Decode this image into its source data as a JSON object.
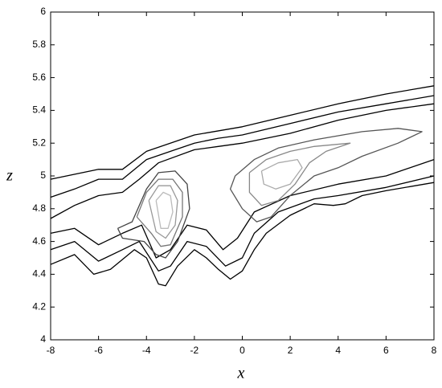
{
  "chart_data": {
    "type": "contour",
    "x_label": "x",
    "y_label": "z",
    "xlim": [
      -8,
      8
    ],
    "ylim": [
      4,
      6
    ],
    "xticks": [
      -8,
      -6,
      -4,
      -2,
      0,
      2,
      4,
      6,
      8
    ],
    "yticks": [
      4,
      4.2,
      4.4,
      4.6,
      4.8,
      5,
      5.2,
      5.4,
      5.6,
      5.8,
      6
    ],
    "lines": [
      {
        "color": "#000000",
        "x": [
          -8,
          -6,
          -5,
          -4,
          -2,
          0,
          2,
          4,
          6,
          8
        ],
        "y": [
          4.98,
          5.04,
          5.04,
          5.15,
          5.25,
          5.3,
          5.37,
          5.44,
          5.5,
          5.55
        ]
      },
      {
        "color": "#000000",
        "x": [
          -8,
          -7,
          -6,
          -5,
          -4,
          -3,
          -2,
          -1,
          0,
          2,
          4,
          6,
          8
        ],
        "y": [
          4.87,
          4.92,
          4.98,
          4.98,
          5.1,
          5.15,
          5.2,
          5.23,
          5.25,
          5.32,
          5.39,
          5.44,
          5.49
        ]
      },
      {
        "color": "#000000",
        "x": [
          -8,
          -7,
          -6,
          -5,
          -4.3,
          -3.5,
          -2,
          -1,
          0,
          2,
          4,
          6,
          8
        ],
        "y": [
          4.74,
          4.82,
          4.88,
          4.9,
          4.98,
          5.08,
          5.16,
          5.18,
          5.2,
          5.26,
          5.34,
          5.4,
          5.44
        ]
      },
      {
        "color": "#000000",
        "x": [
          -8,
          -7,
          -6.2,
          -5.5,
          -4.5,
          -4,
          -3.5,
          -3.2,
          -2.7,
          -2,
          -1.5,
          -1,
          -0.5,
          0,
          0.5,
          1,
          2,
          3,
          3.8,
          4.3,
          5,
          6,
          8
        ],
        "y": [
          4.46,
          4.52,
          4.4,
          4.43,
          4.55,
          4.5,
          4.34,
          4.33,
          4.45,
          4.55,
          4.5,
          4.43,
          4.37,
          4.42,
          4.55,
          4.65,
          4.76,
          4.83,
          4.82,
          4.83,
          4.88,
          4.91,
          4.96
        ]
      },
      {
        "color": "#000000",
        "x": [
          -8,
          -7,
          -6,
          -5,
          -4.3,
          -3.5,
          -3,
          -2.3,
          -1.5,
          -0.7,
          0,
          0.5,
          1.5,
          3,
          4,
          6,
          8
        ],
        "y": [
          4.55,
          4.6,
          4.48,
          4.55,
          4.6,
          4.42,
          4.45,
          4.6,
          4.57,
          4.45,
          4.5,
          4.65,
          4.78,
          4.86,
          4.88,
          4.93,
          5
        ]
      },
      {
        "color": "#000000",
        "x": [
          -8,
          -7,
          -6,
          -5,
          -4.2,
          -3.6,
          -3,
          -2.3,
          -1.5,
          -0.8,
          -0.2,
          0.5,
          2,
          4,
          6,
          8
        ],
        "y": [
          4.65,
          4.68,
          4.58,
          4.65,
          4.7,
          4.5,
          4.55,
          4.7,
          4.67,
          4.55,
          4.62,
          4.78,
          4.88,
          4.95,
          5,
          5.1
        ]
      },
      {
        "color": "#444444",
        "x": [
          -5.2,
          -4.6,
          -4,
          -3.5,
          -2.8,
          -2.3,
          -2.2,
          -2.7,
          -3.2,
          -3.6,
          -4.1,
          -5,
          -5.2
        ],
        "y": [
          4.68,
          4.72,
          4.92,
          5.02,
          5.03,
          4.95,
          4.8,
          4.6,
          4.5,
          4.52,
          4.6,
          4.62,
          4.68
        ]
      },
      {
        "color": "#777777",
        "x": [
          -4.4,
          -4,
          -3.5,
          -2.9,
          -2.5,
          -2.5,
          -3,
          -3.4,
          -3.8,
          -4.4
        ],
        "y": [
          4.75,
          4.9,
          4.98,
          4.98,
          4.9,
          4.75,
          4.58,
          4.57,
          4.65,
          4.75
        ]
      },
      {
        "color": "#999999",
        "x": [
          -3.9,
          -3.5,
          -3,
          -2.7,
          -2.8,
          -3.2,
          -3.6,
          -3.9
        ],
        "y": [
          4.85,
          4.94,
          4.94,
          4.85,
          4.7,
          4.62,
          4.66,
          4.85
        ]
      },
      {
        "color": "#bbbbbb",
        "x": [
          -3.6,
          -3.3,
          -3,
          -2.9,
          -3.1,
          -3.4,
          -3.6
        ],
        "y": [
          4.85,
          4.9,
          4.88,
          4.78,
          4.68,
          4.68,
          4.85
        ]
      },
      {
        "color": "#555555",
        "x": [
          -0.3,
          0.5,
          1.5,
          3,
          5,
          6.5,
          7.5,
          6.5,
          5,
          4,
          3,
          2,
          1.2,
          0.6,
          0,
          -0.5,
          -0.3
        ],
        "y": [
          5,
          5.1,
          5.17,
          5.22,
          5.27,
          5.29,
          5.27,
          5.2,
          5.12,
          5.05,
          5,
          4.88,
          4.75,
          4.72,
          4.8,
          4.92,
          5
        ]
      },
      {
        "color": "#888888",
        "x": [
          0.3,
          1,
          2,
          3,
          4.5,
          3.5,
          2.8,
          2.2,
          1.5,
          0.8,
          0.3,
          0.3
        ],
        "y": [
          5.02,
          5.1,
          5.15,
          5.18,
          5.2,
          5.15,
          5.08,
          4.95,
          4.85,
          4.82,
          4.9,
          5.02
        ]
      },
      {
        "color": "#aaaaaa",
        "x": [
          0.8,
          1.5,
          2.3,
          2.5,
          2,
          1.4,
          0.9,
          0.8
        ],
        "y": [
          5.03,
          5.08,
          5.1,
          5.05,
          4.95,
          4.92,
          4.95,
          5.03
        ]
      }
    ]
  }
}
